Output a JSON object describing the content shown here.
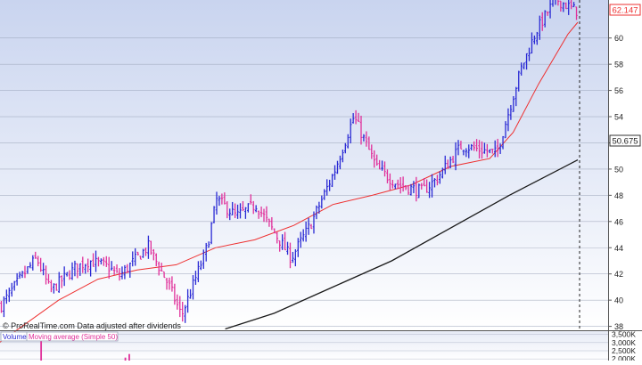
{
  "watermark": "© ProRealTime.com  Data adjusted after dividends",
  "last_price_badge": "62.147",
  "ma200_badge": "50.675",
  "volume_legend": {
    "volume_label": "Volume",
    "ma_label": "Moving average (Simple 50)"
  },
  "colors": {
    "up_bar": "#2a2ad4",
    "down_bar": "#e0309a",
    "ma_short": "#ee3030",
    "ma_long": "#1a1a1a",
    "background_top": "#c9d4ef",
    "background_bottom": "#ffffff",
    "grid": "#9aa3b8"
  },
  "chart_data": [
    {
      "type": "ohlc",
      "y_ticks": [
        "38",
        "40",
        "42",
        "44",
        "46",
        "48",
        "50",
        "52",
        "54",
        "56",
        "58",
        "60"
      ],
      "ylim": [
        37.7,
        62.9
      ],
      "x_count": 220,
      "grid": "horizontal",
      "ohlc": {
        "anchor_x": [
          0,
          10,
          18,
          25,
          38,
          45,
          55,
          60,
          75,
          86,
          92,
          105,
          110,
          120,
          130,
          148,
          158,
          170,
          180,
          192,
          203,
          215,
          222,
          235,
          253,
          265,
          273,
          283,
          293
        ],
        "anchor_close": [
          39.6,
          41.7,
          43.2,
          40.7,
          42.5,
          43.0,
          42.5,
          41.8,
          44.1,
          41.0,
          38.8,
          44.0,
          47.7,
          46.4,
          47.3,
          43.2,
          45.8,
          49.8,
          54.0,
          50.0,
          48.8,
          48.3,
          49.2,
          51.8,
          51.2,
          57.5,
          60.5,
          63.0,
          62.1
        ]
      },
      "series": [
        {
          "kind": "moving_average",
          "color": "#ee3030",
          "x": [
            0,
            30,
            50,
            70,
            90,
            110,
            130,
            150,
            170,
            190,
            210,
            230,
            250,
            262,
            275,
            290,
            295
          ],
          "y": [
            36.8,
            40.0,
            41.6,
            42.3,
            42.7,
            44.0,
            44.6,
            45.7,
            47.3,
            48.0,
            48.8,
            50.2,
            50.8,
            52.8,
            56.5,
            60.3,
            61.2
          ]
        },
        {
          "kind": "moving_average",
          "color": "#1a1a1a",
          "x": [
            115,
            140,
            170,
            200,
            230,
            260,
            295
          ],
          "y": [
            37.8,
            39.0,
            41.0,
            43.0,
            45.5,
            48.0,
            50.7
          ]
        }
      ]
    },
    {
      "type": "bar",
      "y_ticks": [
        "3,500K",
        "3,000K",
        "2,500K",
        "2,000K"
      ],
      "ylim": [
        1900,
        3700
      ],
      "values": [
        {
          "x": 21,
          "value": 3520
        },
        {
          "x": 64,
          "value": 2080
        },
        {
          "x": 66,
          "value": 2300
        }
      ]
    }
  ]
}
